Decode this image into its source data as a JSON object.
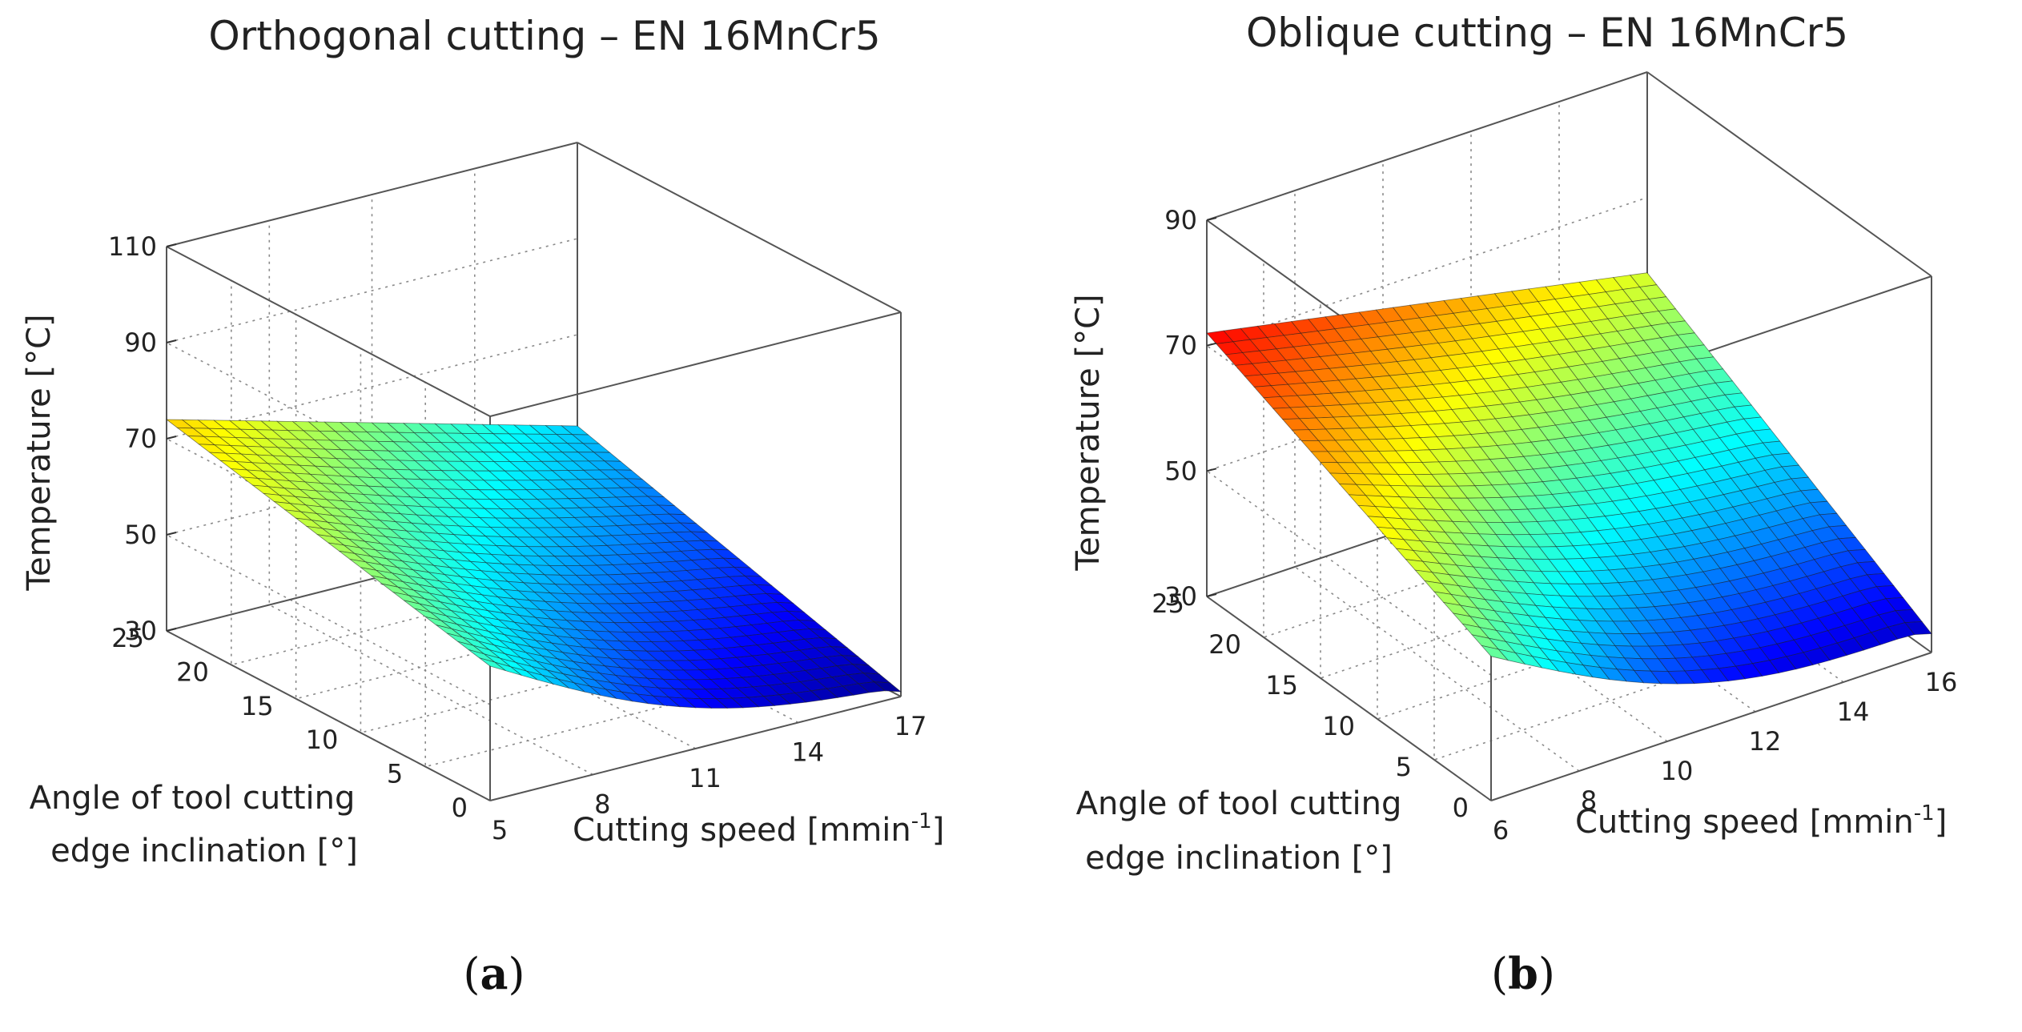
{
  "chart_data": [
    {
      "panel": "a",
      "type": "surface",
      "title": "Orthogonal cutting – EN 16MnCr5",
      "caption_open": "(",
      "caption_letter": "a",
      "caption_close": ")",
      "xlabel": "Cutting speed [mmin",
      "xlabel_sup": "-1",
      "xlabel_end": "]",
      "ylabel_line1": "Angle of tool cutting",
      "ylabel_line2": "edge inclination [°]",
      "zlabel": "Temperature   [°C]",
      "xlim": [
        5,
        17
      ],
      "xticks": [
        5,
        8,
        11,
        14,
        17
      ],
      "ylim": [
        0,
        25
      ],
      "yticks": [
        0,
        5,
        10,
        15,
        20,
        25
      ],
      "zlim": [
        30,
        110
      ],
      "zticks": [
        30,
        50,
        70,
        90,
        110
      ],
      "colormap": "jet",
      "surface": {
        "description": "temperature vs cutting speed and inclination angle",
        "T_at_speed5_angle25": 74,
        "T_at_speed17_angle25": 51,
        "T_at_speed17_angle0": 31,
        "T_at_speed5_angle0": 58,
        "T_min": 31
      }
    },
    {
      "panel": "b",
      "type": "surface",
      "title": "Oblique cutting – EN 16MnCr5",
      "caption_open": "(",
      "caption_letter": "b",
      "caption_close": ")",
      "xlabel": "Cutting speed [mmin",
      "xlabel_sup": "-1",
      "xlabel_end": "]",
      "ylabel_line1": "Angle of tool cutting",
      "ylabel_line2": "edge inclination [°]",
      "zlabel": "Temperature   [°C]",
      "xlim": [
        6,
        16
      ],
      "xticks": [
        6,
        8,
        10,
        12,
        14,
        16
      ],
      "ylim": [
        0,
        25
      ],
      "yticks": [
        0,
        5,
        10,
        15,
        20,
        25
      ],
      "zlim": [
        30,
        90
      ],
      "zticks": [
        30,
        50,
        70,
        90
      ],
      "colormap": "jet",
      "surface": {
        "description": "temperature vs cutting speed and inclination angle",
        "T_at_speed6_angle25": 72,
        "T_at_speed16_angle25": 58,
        "T_at_speed16_angle0": 33,
        "T_at_speed6_angle0": 53,
        "T_min": 32
      }
    }
  ]
}
